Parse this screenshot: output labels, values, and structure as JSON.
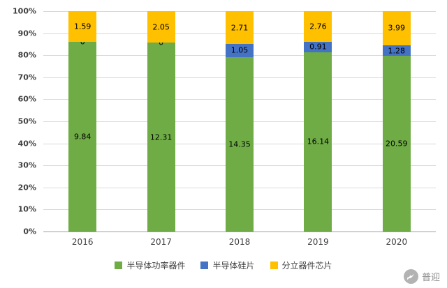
{
  "chart_data": {
    "type": "bar",
    "subtype": "stacked-100-percent",
    "title": "",
    "xlabel": "",
    "ylabel": "",
    "categories": [
      "2016",
      "2017",
      "2018",
      "2019",
      "2020"
    ],
    "series": [
      {
        "name": "半导体功率器件",
        "color": "#6FAC46",
        "values": [
          9.84,
          12.31,
          14.35,
          16.14,
          20.59
        ]
      },
      {
        "name": "半导体硅片",
        "color": "#4472C4",
        "values": [
          0,
          0,
          1.05,
          0.91,
          1.28
        ]
      },
      {
        "name": "分立器件芯片",
        "color": "#FFC000",
        "values": [
          1.59,
          2.05,
          2.71,
          2.76,
          3.99
        ]
      }
    ],
    "y_ticks": [
      "0%",
      "10%",
      "20%",
      "30%",
      "40%",
      "50%",
      "60%",
      "70%",
      "80%",
      "90%",
      "100%"
    ],
    "ylim": [
      0,
      100
    ],
    "grid": true,
    "legend_position": "bottom"
  },
  "watermark": {
    "text": "普迎"
  }
}
